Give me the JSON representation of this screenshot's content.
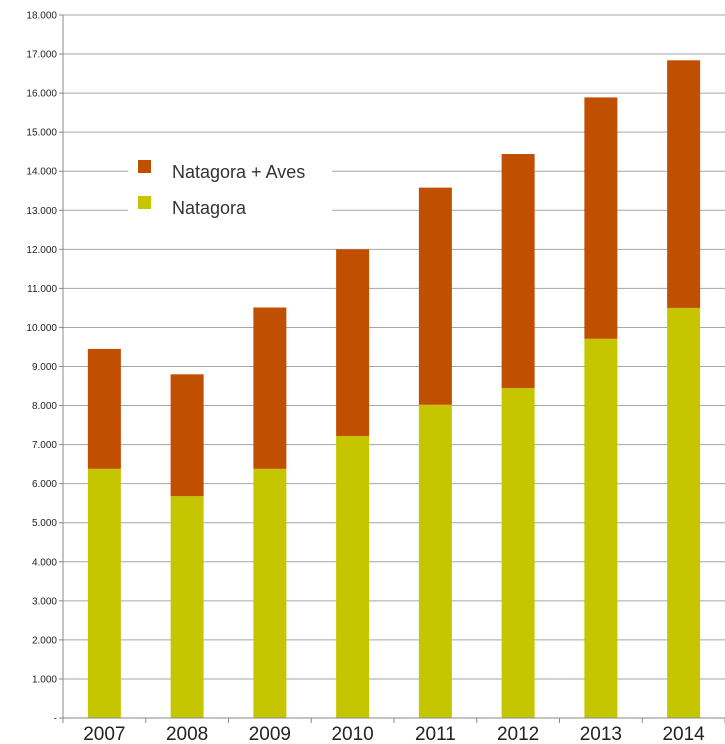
{
  "chart_data": {
    "type": "bar",
    "stacked": true,
    "categories": [
      "2007",
      "2008",
      "2009",
      "2010",
      "2011",
      "2012",
      "2013",
      "2014"
    ],
    "series": [
      {
        "name": "Natagora",
        "values": [
          6380,
          5680,
          6380,
          7220,
          8020,
          8450,
          9710,
          10500
        ]
      },
      {
        "name": "Natagora + Aves",
        "values": [
          3070,
          3120,
          4130,
          4780,
          5560,
          5990,
          6180,
          6340
        ]
      }
    ],
    "series_totals": [
      9450,
      8800,
      10510,
      12000,
      13580,
      14440,
      15890,
      16840
    ],
    "ylim": [
      0,
      18000
    ],
    "yticks": [
      0,
      1000,
      2000,
      3000,
      4000,
      5000,
      6000,
      7000,
      8000,
      9000,
      10000,
      11000,
      12000,
      13000,
      14000,
      15000,
      16000,
      17000,
      18000
    ],
    "ytick_labels": [
      "-",
      "1.000",
      "2.000",
      "3.000",
      "4.000",
      "5.000",
      "6.000",
      "7.000",
      "8.000",
      "9.000",
      "10.000",
      "11.000",
      "12.000",
      "13.000",
      "14.000",
      "15.000",
      "16.000",
      "17.000",
      "18.000"
    ],
    "title": "",
    "xlabel": "",
    "ylabel": "",
    "grid": true,
    "legend": {
      "placement": "upper-left",
      "entries": [
        "Natagora + Aves",
        "Natagora"
      ]
    },
    "colors": {
      "Natagora": "#c6c600",
      "Natagora + Aves": "#c04f00",
      "grid": "#a6a6a6",
      "axis": "#888888"
    }
  }
}
